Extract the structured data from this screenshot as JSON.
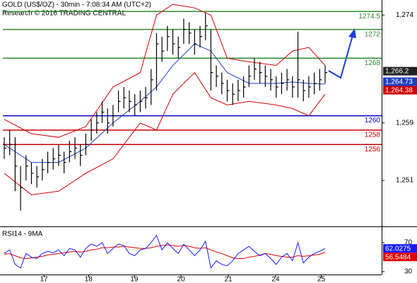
{
  "chart_data": [
    {
      "type": "ohlc",
      "title": "GOLD (US$/OZ) - 30min - 7:08:34 AM (UTC+2)",
      "subtitle": "Research © 2016 TRADING CENTRAL",
      "xlim": [
        0,
        59
      ],
      "ylim": [
        1244.8,
        1276.1
      ],
      "yticks": [
        {
          "value": 1274,
          "label": "1,274"
        },
        {
          "value": 1259,
          "label": "1,259"
        },
        {
          "value": 1251,
          "label": "1,251"
        }
      ],
      "color": "#000000",
      "close": [
        1255.5,
        1256,
        1253,
        1250,
        1253,
        1252,
        1251.5,
        1252.5,
        1253.5,
        1254,
        1254.5,
        1253.5,
        1255,
        1255.5,
        1254.5,
        1256,
        1258,
        1259,
        1260.5,
        1259,
        1260,
        1262,
        1262.5,
        1262,
        1261.5,
        1262,
        1262.5,
        1265,
        1270,
        1269,
        1271,
        1270,
        1269.5,
        1272,
        1271.5,
        1270,
        1271,
        1272.5,
        1266,
        1265.5,
        1264.5,
        1263.5,
        1263,
        1263.5,
        1264,
        1265.5,
        1266.5,
        1266,
        1265.5,
        1265,
        1264,
        1264.5,
        1265,
        1264,
        1265,
        1263.5,
        1264,
        1264.5,
        1265,
        1266
      ],
      "high": [
        1257,
        1258,
        1257,
        1253,
        1254.5,
        1253.5,
        1253,
        1254,
        1255,
        1255.5,
        1256,
        1255,
        1256.5,
        1257,
        1256,
        1257.5,
        1259.5,
        1260.5,
        1262,
        1261,
        1261.5,
        1263.5,
        1264,
        1263.5,
        1263,
        1263.5,
        1264,
        1266.5,
        1271.5,
        1271,
        1272.5,
        1272,
        1271,
        1273.5,
        1273,
        1272,
        1272.5,
        1274.3,
        1272,
        1267,
        1266,
        1265,
        1264.5,
        1265,
        1265.5,
        1267,
        1268,
        1267.5,
        1267,
        1266.5,
        1265.5,
        1266,
        1266.5,
        1265.5,
        1271.7,
        1265,
        1265.5,
        1266,
        1266.5,
        1267
      ],
      "low": [
        1254,
        1254.5,
        1249.5,
        1246.8,
        1251,
        1250.5,
        1250,
        1251,
        1252,
        1252.5,
        1253,
        1252,
        1253.5,
        1254,
        1253,
        1254.5,
        1256.5,
        1257.5,
        1259,
        1257.5,
        1258.5,
        1260.5,
        1261,
        1260.5,
        1260,
        1260.5,
        1261,
        1261.5,
        1263.5,
        1267.5,
        1269,
        1268.5,
        1268,
        1270,
        1270,
        1268.5,
        1269.5,
        1270.5,
        1263.5,
        1264,
        1263,
        1262,
        1261.5,
        1262,
        1262.5,
        1264,
        1265,
        1264.5,
        1264,
        1263.5,
        1262.5,
        1263,
        1263.5,
        1262.5,
        1262.5,
        1262,
        1262.5,
        1263,
        1263.5,
        1264.5
      ],
      "bands": {
        "x": [
          0,
          5,
          10,
          15,
          20,
          25,
          28,
          31,
          35,
          38,
          41,
          45,
          50,
          53,
          56,
          59
        ],
        "upper": [
          1259.5,
          1257.5,
          1257,
          1258.5,
          1264,
          1266,
          1274,
          1275.5,
          1275,
          1274,
          1268,
          1267.5,
          1267,
          1269,
          1269.5,
          1267
        ],
        "middle": [
          1256,
          1253.5,
          1253.5,
          1255.5,
          1259,
          1262,
          1264,
          1267,
          1270,
          1269,
          1266,
          1264.5,
          1264.5,
          1264.7,
          1264.5,
          1264.4
        ],
        "lower": [
          1252,
          1249,
          1249.5,
          1252,
          1254,
          1259,
          1258,
          1263,
          1266,
          1262.5,
          1261.5,
          1262,
          1261.5,
          1261,
          1260,
          1263
        ],
        "color": "#d00000",
        "middle_color": "#1f3fbf"
      },
      "levels": [
        {
          "value": 1274.5,
          "color": "#2e8b2e"
        },
        {
          "value": 1272,
          "color": "#2e8b2e"
        },
        {
          "value": 1268,
          "color": "#2e8b2e"
        },
        {
          "value": 1260,
          "color": "#0000cc"
        },
        {
          "value": 1258,
          "color": "#cc0000"
        },
        {
          "value": 1256,
          "color": "#cc0000"
        }
      ],
      "price_tags": [
        {
          "value": 1266.2,
          "label": "1,266.2",
          "color": "#222222"
        },
        {
          "value": 1264.73,
          "label": "1,264.73",
          "color": "#1f3fbf"
        },
        {
          "value": 1264.38,
          "label": "1,264.38",
          "color": "#d00000"
        }
      ]
    },
    {
      "type": "line",
      "title": "RSI14 - 9MA",
      "xlim": [
        0,
        59
      ],
      "ylim": [
        26,
        90.5
      ],
      "yticks": [
        70,
        30
      ],
      "xticks": [
        {
          "value": 7.3,
          "label": "17"
        },
        {
          "value": 15.5,
          "label": "18"
        },
        {
          "value": 23.9,
          "label": "19"
        },
        {
          "value": 32.5,
          "label": "20"
        },
        {
          "value": 41.2,
          "label": "21"
        },
        {
          "value": 49.9,
          "label": "24"
        },
        {
          "value": 58.3,
          "label": "25"
        }
      ],
      "series": [
        {
          "color": "#1a1aff",
          "values": [
            55,
            60,
            40,
            35,
            55,
            50,
            48,
            55,
            58,
            56,
            60,
            52,
            62,
            60,
            50,
            62,
            68,
            65,
            70,
            55,
            62,
            68,
            66,
            55,
            52,
            60,
            62,
            70,
            80,
            60,
            70,
            62,
            55,
            68,
            60,
            52,
            60,
            72,
            35,
            45,
            40,
            38,
            45,
            55,
            60,
            65,
            58,
            52,
            55,
            48,
            40,
            50,
            55,
            45,
            70,
            42,
            50,
            55,
            58,
            62.0275
          ]
        },
        {
          "color": "#e00000",
          "values": [
            54,
            55,
            52,
            49,
            48,
            49,
            50,
            51,
            53,
            54,
            55,
            56,
            57,
            58,
            57,
            58,
            60,
            61,
            63,
            63,
            64,
            64,
            65,
            64,
            63,
            62,
            62,
            63,
            65,
            66,
            67,
            66,
            65,
            66,
            65,
            63,
            62,
            63,
            60,
            57,
            55,
            52,
            49,
            48,
            48,
            50,
            51,
            53,
            55,
            54,
            52,
            51,
            50,
            50,
            52,
            51,
            52,
            53,
            54,
            56.5484
          ]
        }
      ]
    }
  ]
}
